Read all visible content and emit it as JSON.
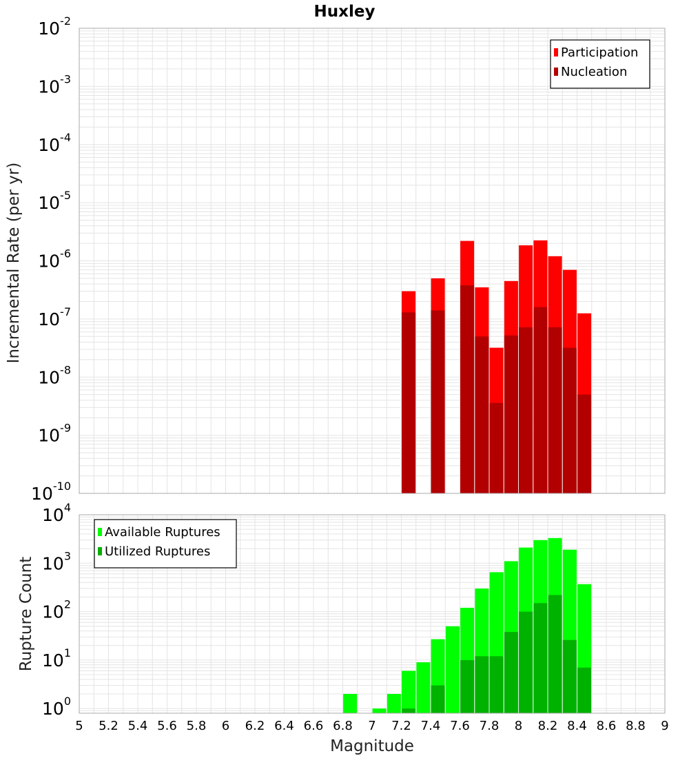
{
  "title": "Huxley",
  "colors": {
    "participation": "#ff0000",
    "nucleation": "#b20000",
    "available": "#00ff00",
    "utilized": "#00b200",
    "grid": "#e4e4e4",
    "frame": "#a8a8a8"
  },
  "chart_data": [
    {
      "type": "bar",
      "title": "Huxley",
      "xlabel": "Magnitude",
      "ylabel": "Incremental Rate (per yr)",
      "yscale": "log",
      "ylim": [
        1e-10,
        0.01
      ],
      "xlim": [
        5,
        9
      ],
      "grid": true,
      "legend_position": "top-right",
      "categories": [
        7.25,
        7.45,
        7.65,
        7.75,
        7.85,
        7.95,
        8.05,
        8.15,
        8.25,
        8.35,
        8.45
      ],
      "series": [
        {
          "name": "Participation",
          "values": [
            3e-07,
            5e-07,
            2.2e-06,
            3.5e-07,
            3.2e-08,
            4.5e-07,
            1.85e-06,
            2.25e-06,
            1.2e-06,
            7e-07,
            1.25e-07
          ]
        },
        {
          "name": "Nucleation",
          "values": [
            1.3e-07,
            1.4e-07,
            3.8e-07,
            5e-08,
            3.6e-09,
            5.2e-08,
            7.2e-08,
            1.6e-07,
            7.2e-08,
            3.2e-08,
            5e-09
          ]
        }
      ]
    },
    {
      "type": "bar",
      "xlabel": "Magnitude",
      "ylabel": "Rupture Count",
      "yscale": "log",
      "ylim": [
        0.8,
        10000
      ],
      "xlim": [
        5,
        9
      ],
      "grid": true,
      "legend_position": "top-left",
      "categories": [
        6.85,
        7.05,
        7.15,
        7.25,
        7.35,
        7.45,
        7.55,
        7.65,
        7.75,
        7.85,
        7.95,
        8.05,
        8.15,
        8.25,
        8.35,
        8.45
      ],
      "series": [
        {
          "name": "Available Ruptures",
          "values": [
            2,
            1,
            2,
            6,
            9,
            27,
            50,
            120,
            300,
            650,
            1100,
            2100,
            3000,
            3300,
            1900,
            370
          ]
        },
        {
          "name": "Utilized Ruptures",
          "values": [
            0,
            0,
            0,
            1,
            0,
            3,
            0,
            10,
            12,
            12,
            38,
            100,
            150,
            220,
            26,
            7
          ]
        }
      ]
    }
  ],
  "x_ticks": [
    "5",
    "5.2",
    "5.4",
    "5.6",
    "5.8",
    "6",
    "6.2",
    "6.4",
    "6.6",
    "6.8",
    "7",
    "7.2",
    "7.4",
    "7.6",
    "7.8",
    "8",
    "8.2",
    "8.4",
    "8.6",
    "8.8",
    "9"
  ],
  "top_y_ticks": [
    {
      "base": "10",
      "exp": "-10"
    },
    {
      "base": "10",
      "exp": "-9"
    },
    {
      "base": "10",
      "exp": "-8"
    },
    {
      "base": "10",
      "exp": "-7"
    },
    {
      "base": "10",
      "exp": "-6"
    },
    {
      "base": "10",
      "exp": "-5"
    },
    {
      "base": "10",
      "exp": "-4"
    },
    {
      "base": "10",
      "exp": "-3"
    },
    {
      "base": "10",
      "exp": "-2"
    }
  ],
  "bottom_y_ticks": [
    {
      "base": "10",
      "exp": "0"
    },
    {
      "base": "10",
      "exp": "1"
    },
    {
      "base": "10",
      "exp": "2"
    },
    {
      "base": "10",
      "exp": "3"
    },
    {
      "base": "10",
      "exp": "4"
    }
  ]
}
